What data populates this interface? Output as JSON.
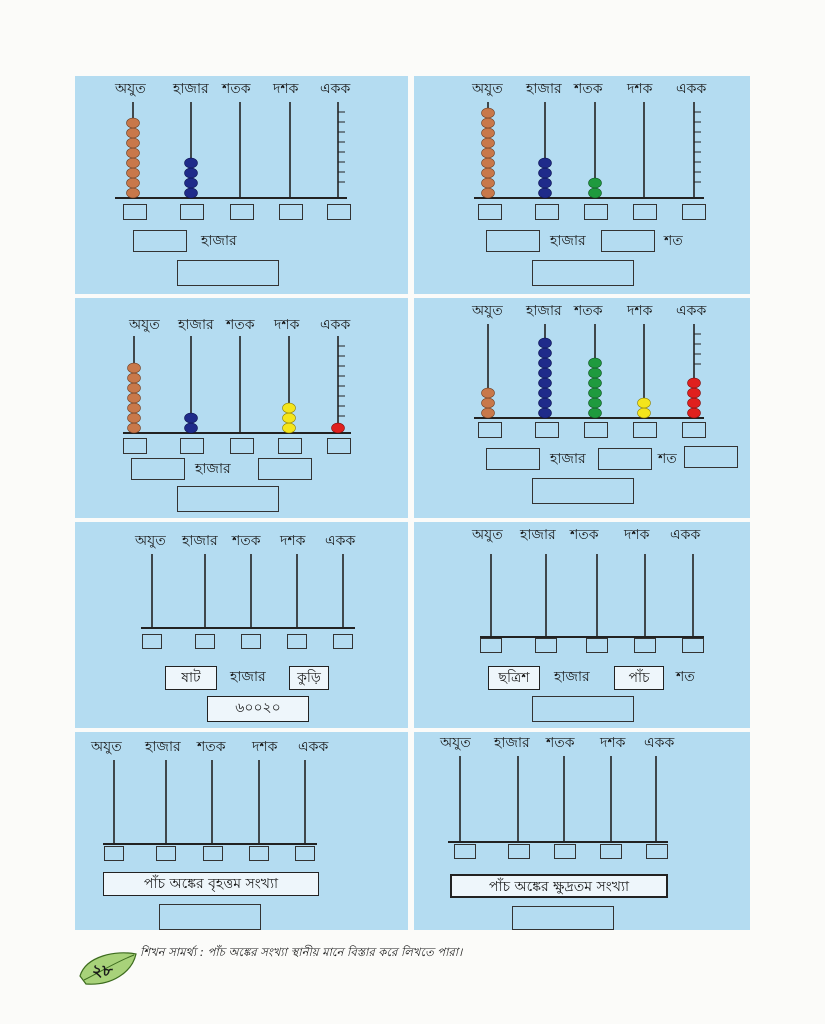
{
  "place_labels": [
    "অযুত",
    "হাজার",
    "শতক",
    "দশক",
    "একক"
  ],
  "word_hajar": "হাজার",
  "word_shot": "শত",
  "panel7_words": {
    "a": "ষাট",
    "b": "কুড়ি",
    "num": "৬০০২০"
  },
  "panel8_words": {
    "a": "ছত্রিশ",
    "b": "পাঁচ"
  },
  "panel9_caption": "পাঁচ অঙ্কের বৃহত্তম সংখ্যা",
  "panel10_caption": "পাঁচ অঙ্কের ক্ষুদ্রতম সংখ্যা",
  "footer_text": "শিখন সামর্থ্য : পাঁচ অঙ্কের সংখ্যা স্থানীয় মানে বিস্তার করে লিখতে পারা।",
  "page_number": "২৮",
  "colors": {
    "panel": "#b4dcf1",
    "orange": "#c8784a",
    "blue": "#1f2b8a",
    "green": "#1f9a3e",
    "yellow": "#f4e51c",
    "red": "#e0201e",
    "leaf": "#a8d27a"
  },
  "abacus_beads": {
    "panel1": {
      "ajut": 8,
      "hajar": 4,
      "shatak": 0,
      "dashak": 0,
      "ekak": 0
    },
    "panel2": {
      "ajut": 9,
      "hajar": 4,
      "shatak": 2,
      "dashak": 0,
      "ekak": 0
    },
    "panel3": {
      "ajut": 7,
      "hajar": 2,
      "shatak": 0,
      "dashak": 3,
      "ekak": 1
    },
    "panel4": {
      "ajut": 3,
      "hajar": 8,
      "shatak": 6,
      "dashak": 2,
      "ekak": 4
    }
  }
}
